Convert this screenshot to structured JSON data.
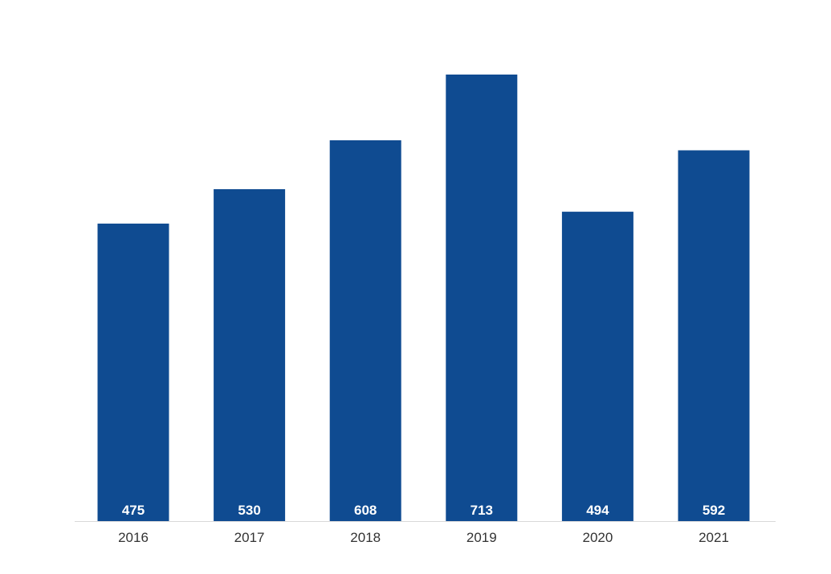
{
  "chart_data": {
    "type": "bar",
    "title": "",
    "xlabel": "",
    "ylabel": "",
    "categories": [
      "2016",
      "2017",
      "2018",
      "2019",
      "2020",
      "2021"
    ],
    "values": [
      475,
      530,
      608,
      713,
      494,
      592
    ],
    "data_labels": [
      "475",
      "530",
      "608",
      "713",
      "494",
      "592"
    ],
    "ylim": [
      0,
      713
    ],
    "grid": false,
    "legend": "none",
    "colors": {
      "bar": "#0f4b91",
      "data_label": "#ffffff",
      "tick_label": "#333333",
      "baseline": "#d9d9d9"
    }
  }
}
